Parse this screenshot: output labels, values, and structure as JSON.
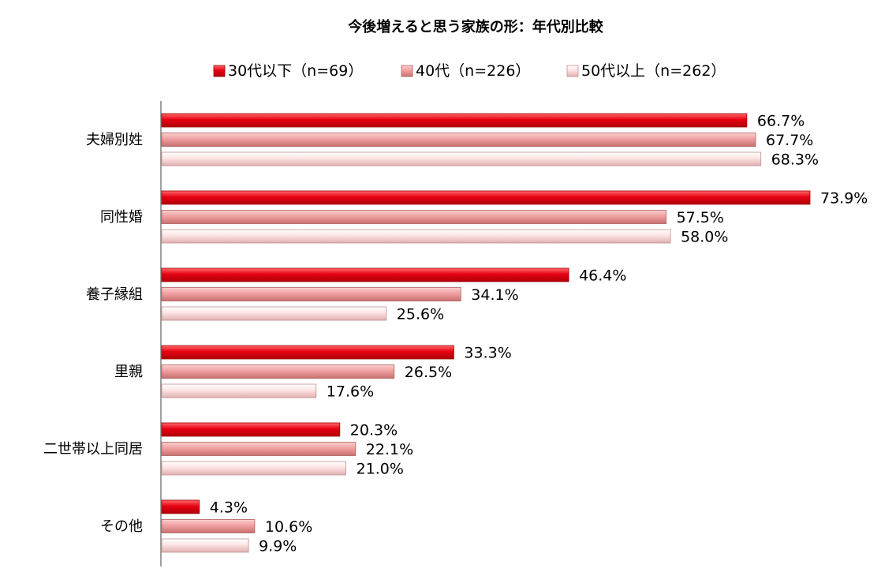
{
  "chart_data": {
    "type": "bar",
    "orientation": "horizontal",
    "title": "今後増えると思う家族の形：年代別比較",
    "categories": [
      "夫婦別姓",
      "同性婚",
      "養子縁組",
      "里親",
      "二世帯以上同居",
      "その他"
    ],
    "series": [
      {
        "name": "30代以下（n=69）",
        "color": "#e60012",
        "values": [
          66.7,
          73.9,
          46.4,
          33.3,
          20.3,
          4.3
        ],
        "labels": [
          "66.7%",
          "73.9%",
          "46.4%",
          "33.3%",
          "20.3%",
          "4.3%"
        ]
      },
      {
        "name": "40代（n=226）",
        "color": "#f0a0a0",
        "values": [
          67.7,
          57.5,
          34.1,
          26.5,
          22.1,
          10.6
        ],
        "labels": [
          "67.7%",
          "57.5%",
          "34.1%",
          "26.5%",
          "22.1%",
          "10.6%"
        ]
      },
      {
        "name": "50代以上（n=262）",
        "color": "#fde0e0",
        "values": [
          68.3,
          58.0,
          25.6,
          17.6,
          21.0,
          9.9
        ],
        "labels": [
          "68.3%",
          "58.0%",
          "25.6%",
          "17.6%",
          "21.0%",
          "9.9%"
        ]
      }
    ],
    "xlim": [
      0,
      74
    ],
    "legend_position": "top",
    "grid": false
  }
}
